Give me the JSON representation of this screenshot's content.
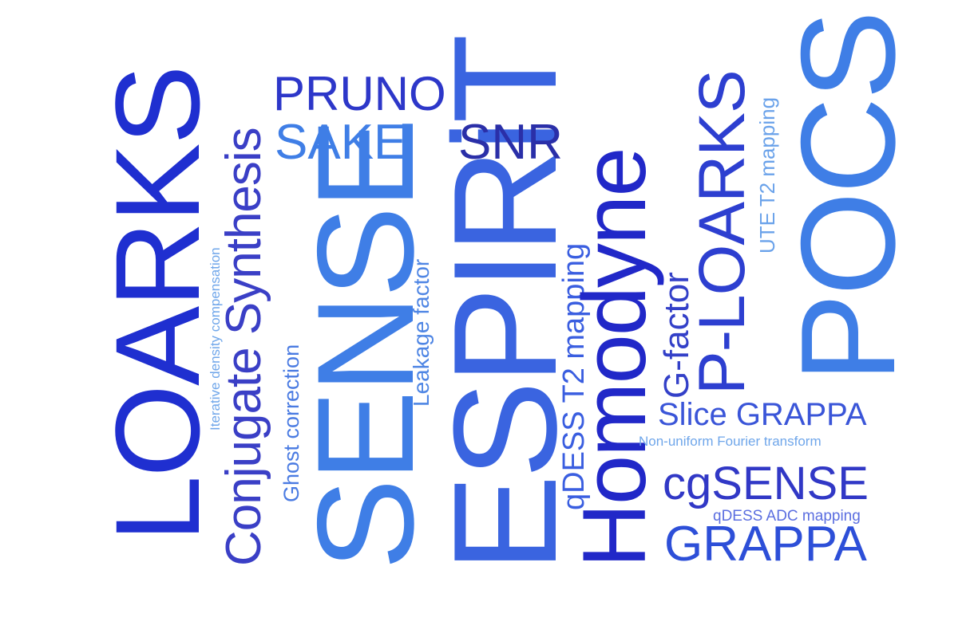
{
  "words": {
    "loarks": "LOARKS",
    "iterative_density": "Iterative density compensation",
    "conjugate_synthesis": "Conjugate Synthesis",
    "ghost_correction": "Ghost correction",
    "pruno": "PRUNO",
    "sake": "SAKE",
    "sense": "SENSE",
    "leakage_factor": "Leakage factor",
    "espirit": "ESPIRiT",
    "snr": "SNR",
    "qdess_t2": "qDESS T2 mapping",
    "homodyne": "Homodyne",
    "g_factor": "G-factor",
    "p_loarks": "P-LOARKS",
    "ute_t2": "UTE T2 mapping",
    "pocs": "POCS",
    "slice_grappa": "Slice GRAPPA",
    "nufft": "Non-uniform Fourier transform",
    "cgsense": "cgSENSE",
    "qdess_adc": "qDESS ADC mapping",
    "grappa": "GRAPPA"
  },
  "colors": {
    "deep_blue": "#1f2fd0",
    "royal_blue": "#2d4fd8",
    "mid_blue": "#3b62e2",
    "sky_blue": "#3f7ee6",
    "indigo": "#3238b8",
    "light_blue": "#5f9ae8",
    "pale_blue": "#6fa6ea",
    "slate_blue": "#5b6ee0"
  }
}
